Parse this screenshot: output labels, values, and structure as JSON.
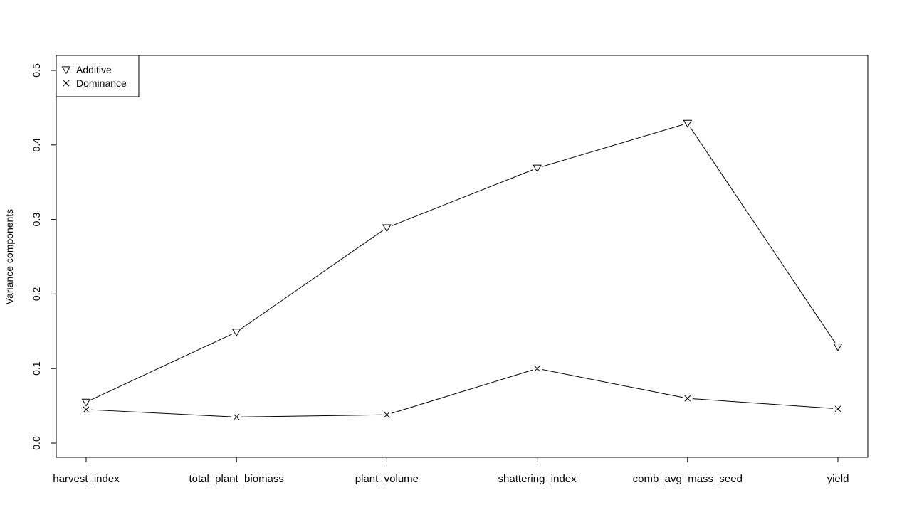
{
  "chart_data": {
    "type": "line",
    "ylabel": "Variance components",
    "categories": [
      "harvest_index",
      "total_plant_biomass",
      "plant_volume",
      "shattering_index",
      "comb_avg_mass_seed",
      "yield"
    ],
    "ylim": [
      0,
      0.5
    ],
    "yticks": [
      "0.0",
      "0.1",
      "0.2",
      "0.3",
      "0.4",
      "0.5"
    ],
    "legend_position": "top-left",
    "grid": false,
    "series": [
      {
        "name": "Additive",
        "marker": "triangle-down",
        "values": [
          0.055,
          0.149,
          0.289,
          0.369,
          0.429,
          0.129
        ]
      },
      {
        "name": "Dominance",
        "marker": "cross",
        "values": [
          0.045,
          0.035,
          0.038,
          0.1,
          0.06,
          0.046
        ]
      }
    ]
  }
}
